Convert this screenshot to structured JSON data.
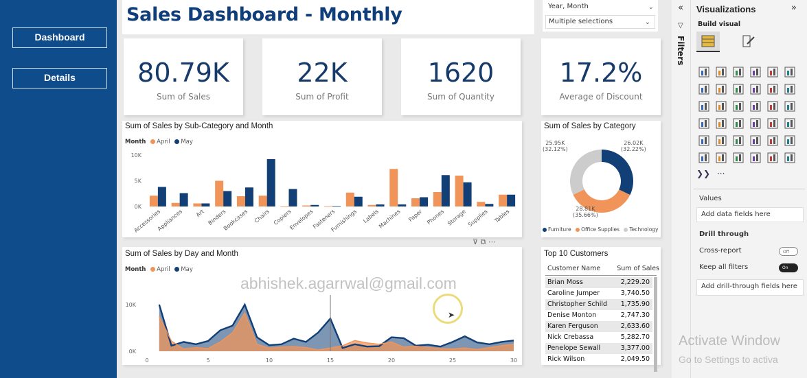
{
  "nav": {
    "dashboard": "Dashboard",
    "details": "Details"
  },
  "title": "Sales Dashboard - Monthly",
  "slicer": {
    "label": "Year, Month",
    "value": "Multiple selections"
  },
  "kpis": [
    {
      "value": "80.79K",
      "label": "Sum of Sales"
    },
    {
      "value": "22K",
      "label": "Sum of Profit"
    },
    {
      "value": "1620",
      "label": "Sum of Quantity"
    },
    {
      "value": "17.2%",
      "label": "Average of Discount"
    }
  ],
  "colors": {
    "april": "#f0945a",
    "may": "#123f76",
    "technology": "#cccccc"
  },
  "legend": {
    "title": "Month",
    "april": "April",
    "may": "May"
  },
  "bar_chart": {
    "title": "Sum of Sales by Sub-Category and Month",
    "yticks": [
      "10K",
      "5K",
      "0K"
    ]
  },
  "line_chart": {
    "title": "Sum of Sales by Day and Month",
    "yticks": [
      "10K",
      "0K"
    ],
    "xticks": [
      "0",
      "5",
      "10",
      "15",
      "20",
      "25",
      "30"
    ]
  },
  "donut": {
    "title": "Sum of Sales by Category",
    "labels": [
      {
        "value": "25.95K",
        "pct": "(32.12%)"
      },
      {
        "value": "26.02K",
        "pct": "(32.22%)"
      },
      {
        "value": "28.81K",
        "pct": "(35.66%)"
      }
    ],
    "legend": [
      "Furniture",
      "Office Supplies",
      "Technology"
    ]
  },
  "customers": {
    "title": "Top 10 Customers",
    "headers": [
      "Customer Name",
      "Sum of Sales"
    ],
    "rows": [
      [
        "Brian Moss",
        "2,229.20"
      ],
      [
        "Caroline Jumper",
        "3,740.50"
      ],
      [
        "Christopher Schild",
        "1,735.90"
      ],
      [
        "Denise Monton",
        "2,747.30"
      ],
      [
        "Karen Ferguson",
        "2,633.60"
      ],
      [
        "Nick Crebassa",
        "5,282.70"
      ],
      [
        "Penelope Sewall",
        "3,377.00"
      ],
      [
        "Rick Wilson",
        "2,049.50"
      ]
    ]
  },
  "watermark": "abhishek.agarrwal@gmail.com",
  "filters_label": "Filters",
  "viz": {
    "title": "Visualizations",
    "build": "Build visual",
    "values_label": "Values",
    "values_field": "Add data fields here",
    "drill": "Drill through",
    "cross": "Cross-report",
    "cross_state": "Off",
    "keep": "Keep all filters",
    "keep_state": "On",
    "drill_field": "Add drill-through fields here",
    "more": "···"
  },
  "activate": {
    "line1": "Activate Window",
    "line2": "Go to Settings to activa"
  },
  "chart_data": [
    {
      "type": "bar",
      "title": "Sum of Sales by Sub-Category and Month",
      "categories": [
        "Accessories",
        "Appliances",
        "Art",
        "Binders",
        "Bookcases",
        "Chairs",
        "Copiers",
        "Envelopes",
        "Fasteners",
        "Furnishings",
        "Labels",
        "Machines",
        "Paper",
        "Phones",
        "Storage",
        "Supplies",
        "Tables"
      ],
      "series": [
        {
          "name": "April",
          "values": [
            2100,
            700,
            600,
            5000,
            2000,
            2100,
            0,
            200,
            100,
            2700,
            300,
            7300,
            1600,
            2800,
            6000,
            900,
            2300
          ]
        },
        {
          "name": "May",
          "values": [
            3800,
            2600,
            600,
            3000,
            3700,
            9200,
            3400,
            300,
            100,
            1900,
            400,
            400,
            1800,
            6100,
            4700,
            500,
            2300
          ]
        }
      ],
      "ylabel": "",
      "xlabel": "",
      "ylim": [
        0,
        10000
      ]
    },
    {
      "type": "area",
      "title": "Sum of Sales by Day and Month",
      "x": [
        1,
        2,
        3,
        4,
        5,
        6,
        7,
        8,
        9,
        10,
        11,
        12,
        13,
        14,
        15,
        16,
        17,
        18,
        19,
        20,
        21,
        22,
        23,
        24,
        25,
        26,
        27,
        28,
        29,
        30
      ],
      "series": [
        {
          "name": "April",
          "values": [
            7500,
            2200,
            500,
            800,
            600,
            2000,
            4000,
            8200,
            1500,
            700,
            900,
            1000,
            800,
            300,
            700,
            1200,
            2300,
            1800,
            1500,
            2000,
            900,
            1100,
            800,
            600,
            500,
            700,
            400,
            800,
            1200,
            1500
          ]
        },
        {
          "name": "May",
          "values": [
            10000,
            1200,
            2000,
            1500,
            2200,
            4500,
            5500,
            10000,
            3000,
            1300,
            1500,
            2700,
            2000,
            4000,
            7000,
            700,
            1500,
            1000,
            1100,
            3000,
            2800,
            1200,
            1400,
            1000,
            2000,
            3200,
            1900,
            1500,
            2000,
            2300
          ]
        }
      ],
      "ylim": [
        0,
        10000
      ],
      "xlim": [
        0,
        30
      ]
    },
    {
      "type": "pie",
      "title": "Sum of Sales by Category",
      "categories": [
        "Furniture",
        "Office Supplies",
        "Technology"
      ],
      "values": [
        26020,
        28810,
        25950
      ]
    }
  ]
}
